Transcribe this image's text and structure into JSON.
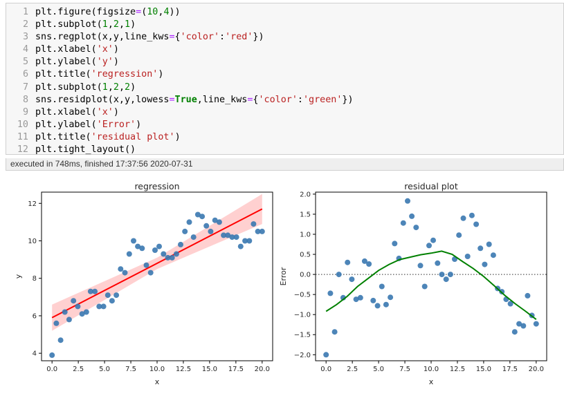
{
  "code_lines": [
    [
      {
        "t": "plt.figure(figsize"
      },
      {
        "t": "=",
        "c": "op"
      },
      {
        "t": "("
      },
      {
        "t": "10",
        "c": "num"
      },
      {
        "t": ","
      },
      {
        "t": "4",
        "c": "num"
      },
      {
        "t": "))"
      }
    ],
    [
      {
        "t": "plt.subplot("
      },
      {
        "t": "1",
        "c": "num"
      },
      {
        "t": ","
      },
      {
        "t": "2",
        "c": "num"
      },
      {
        "t": ","
      },
      {
        "t": "1",
        "c": "num"
      },
      {
        "t": ")"
      }
    ],
    [
      {
        "t": "sns.regplot(x,y,line_kws"
      },
      {
        "t": "=",
        "c": "op"
      },
      {
        "t": "{"
      },
      {
        "t": "'color'",
        "c": "str"
      },
      {
        "t": ":"
      },
      {
        "t": "'red'",
        "c": "str"
      },
      {
        "t": "})"
      }
    ],
    [
      {
        "t": "plt.xlabel("
      },
      {
        "t": "'x'",
        "c": "str"
      },
      {
        "t": ")"
      }
    ],
    [
      {
        "t": "plt.ylabel("
      },
      {
        "t": "'y'",
        "c": "str"
      },
      {
        "t": ")"
      }
    ],
    [
      {
        "t": "plt.title("
      },
      {
        "t": "'regression'",
        "c": "str"
      },
      {
        "t": ")"
      }
    ],
    [
      {
        "t": "plt.subplot("
      },
      {
        "t": "1",
        "c": "num"
      },
      {
        "t": ","
      },
      {
        "t": "2",
        "c": "num"
      },
      {
        "t": ","
      },
      {
        "t": "2",
        "c": "num"
      },
      {
        "t": ")"
      }
    ],
    [
      {
        "t": "sns.residplot(x,y,lowess"
      },
      {
        "t": "=",
        "c": "op"
      },
      {
        "t": "True",
        "c": "kw"
      },
      {
        "t": ",line_kws"
      },
      {
        "t": "=",
        "c": "op"
      },
      {
        "t": "{"
      },
      {
        "t": "'color'",
        "c": "str"
      },
      {
        "t": ":"
      },
      {
        "t": "'green'",
        "c": "str"
      },
      {
        "t": "})"
      }
    ],
    [
      {
        "t": "plt.xlabel("
      },
      {
        "t": "'x'",
        "c": "str"
      },
      {
        "t": ")"
      }
    ],
    [
      {
        "t": "plt.ylabel("
      },
      {
        "t": "'Error'",
        "c": "str"
      },
      {
        "t": ")"
      }
    ],
    [
      {
        "t": "plt.title("
      },
      {
        "t": "'residual plot'",
        "c": "str"
      },
      {
        "t": ")"
      }
    ],
    [
      {
        "t": "plt.tight_layout()"
      }
    ]
  ],
  "execution_status": "executed in 748ms, finished 17:37:56 2020-07-31",
  "chart_data": [
    {
      "type": "scatter",
      "title": "regression",
      "xlabel": "x",
      "ylabel": "y",
      "xlim": [
        -1,
        21
      ],
      "ylim": [
        3.6,
        12.6
      ],
      "xticks": [
        "0.0",
        "2.5",
        "5.0",
        "7.5",
        "10.0",
        "12.5",
        "15.0",
        "17.5",
        "20.0"
      ],
      "yticks": [
        "4",
        "6",
        "8",
        "10",
        "12"
      ],
      "point_color": "#3a78b0",
      "fit_color": "#ff0000",
      "band_color": "#ffc0c0",
      "fit_line": {
        "x": [
          0,
          20
        ],
        "y": [
          5.9,
          11.7
        ]
      },
      "confidence_band": {
        "x": [
          0,
          10,
          20
        ],
        "lower": [
          5.2,
          8.5,
          10.9
        ],
        "upper": [
          6.6,
          9.1,
          12.5
        ]
      },
      "points": {
        "x": [
          0.0,
          0.41,
          0.82,
          1.22,
          1.63,
          2.04,
          2.45,
          2.86,
          3.27,
          3.67,
          4.08,
          4.49,
          4.9,
          5.31,
          5.71,
          6.12,
          6.53,
          6.94,
          7.35,
          7.76,
          8.16,
          8.57,
          8.98,
          9.39,
          9.8,
          10.2,
          10.61,
          11.02,
          11.43,
          11.84,
          12.24,
          12.65,
          13.06,
          13.47,
          13.88,
          14.29,
          14.69,
          15.1,
          15.51,
          15.92,
          16.33,
          16.73,
          17.14,
          17.55,
          17.96,
          18.37,
          18.78,
          19.18,
          19.59,
          20.0
        ],
        "y": [
          3.9,
          5.6,
          4.7,
          6.2,
          5.8,
          6.8,
          6.5,
          6.1,
          6.2,
          7.3,
          7.3,
          6.5,
          6.5,
          7.1,
          6.8,
          7.1,
          8.5,
          8.3,
          9.3,
          10.0,
          9.7,
          9.6,
          8.7,
          8.3,
          9.5,
          9.7,
          9.3,
          9.1,
          9.1,
          9.3,
          9.8,
          10.5,
          11.0,
          10.2,
          11.4,
          11.3,
          10.8,
          10.5,
          11.1,
          11.0,
          10.3,
          10.3,
          10.2,
          10.2,
          9.7,
          10.0,
          10.0,
          10.9,
          10.5,
          10.5
        ]
      }
    },
    {
      "type": "scatter",
      "title": "residual plot",
      "xlabel": "x",
      "ylabel": "Error",
      "xlim": [
        -1,
        21
      ],
      "ylim": [
        -2.15,
        2.05
      ],
      "xticks": [
        "0.0",
        "2.5",
        "5.0",
        "7.5",
        "10.0",
        "12.5",
        "15.0",
        "17.5",
        "20.0"
      ],
      "yticks": [
        "−2.0",
        "−1.5",
        "−1.0",
        "−0.5",
        "0.0",
        "0.5",
        "1.0",
        "1.5",
        "2.0"
      ],
      "point_color": "#3a78b0",
      "lowess_color": "#008000",
      "zero_line": {
        "y": 0,
        "style": "dotted",
        "color": "#555555"
      },
      "lowess_line": {
        "x": [
          0,
          1,
          2,
          3,
          4,
          5,
          6,
          7,
          8,
          9,
          10,
          11,
          12,
          13,
          14,
          15,
          16,
          17,
          18,
          19,
          20
        ],
        "y": [
          -0.92,
          -0.75,
          -0.55,
          -0.3,
          -0.1,
          0.1,
          0.25,
          0.37,
          0.43,
          0.49,
          0.53,
          0.58,
          0.5,
          0.32,
          0.15,
          -0.05,
          -0.28,
          -0.52,
          -0.73,
          -0.92,
          -1.12
        ]
      },
      "points": {
        "x": [
          0.0,
          0.41,
          0.82,
          1.22,
          1.63,
          2.04,
          2.45,
          2.86,
          3.27,
          3.67,
          4.08,
          4.49,
          4.9,
          5.31,
          5.71,
          6.12,
          6.53,
          6.94,
          7.35,
          7.76,
          8.16,
          8.57,
          8.98,
          9.39,
          9.8,
          10.2,
          10.61,
          11.02,
          11.43,
          11.84,
          12.24,
          12.65,
          13.06,
          13.47,
          13.88,
          14.29,
          14.69,
          15.1,
          15.51,
          15.92,
          16.33,
          16.73,
          17.14,
          17.55,
          17.96,
          18.37,
          18.78,
          19.18,
          19.59,
          20.0
        ],
        "y": [
          -2.0,
          -0.47,
          -1.43,
          0.0,
          -0.58,
          0.3,
          -0.12,
          -0.62,
          -0.58,
          0.33,
          0.26,
          -0.65,
          -0.78,
          -0.3,
          -0.75,
          -0.57,
          0.77,
          0.4,
          1.28,
          1.83,
          1.45,
          1.17,
          0.22,
          -0.3,
          0.72,
          0.85,
          0.28,
          0.0,
          -0.12,
          0.0,
          0.38,
          0.98,
          1.4,
          0.45,
          1.47,
          1.25,
          0.65,
          0.25,
          0.75,
          0.48,
          -0.35,
          -0.43,
          -0.62,
          -0.73,
          -1.43,
          -1.23,
          -1.28,
          -0.53,
          -1.02,
          -1.23
        ]
      }
    }
  ]
}
